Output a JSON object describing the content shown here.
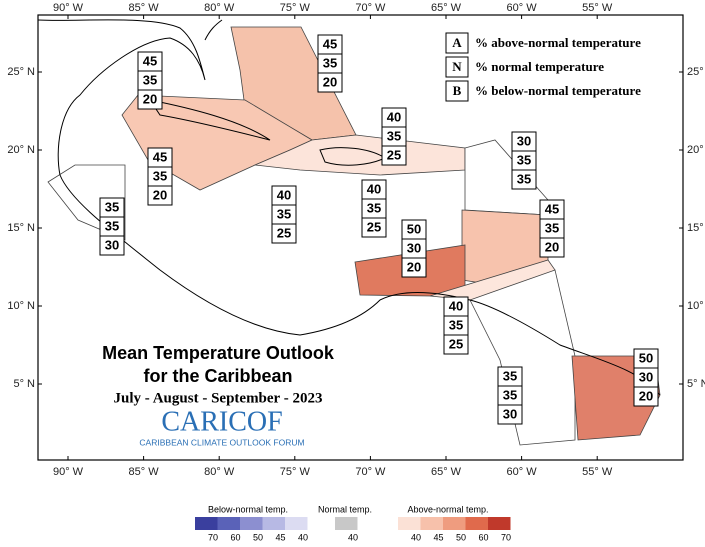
{
  "title_lines": [
    "Mean Temperature Outlook",
    "for the Caribbean",
    "July - August - September - 2023"
  ],
  "logo": {
    "name": "CARICOF",
    "subtitle": "CARIBBEAN CLIMATE OUTLOOK FORUM"
  },
  "key": [
    {
      "letter": "A",
      "text": "% above-normal temperature"
    },
    {
      "letter": "N",
      "text": "% normal temperature"
    },
    {
      "letter": "B",
      "text": "% below-normal temperature"
    }
  ],
  "longitude_labels": [
    "90° W",
    "85° W",
    "80° W",
    "75° W",
    "70° W",
    "65° W",
    "60° W",
    "55° W"
  ],
  "latitude_labels": [
    "25° N",
    "20° N",
    "15° N",
    "10° N",
    "5° N"
  ],
  "regions": [
    {
      "above": 45,
      "normal": 35,
      "below": 20
    },
    {
      "above": 45,
      "normal": 35,
      "below": 20
    },
    {
      "above": 40,
      "normal": 35,
      "below": 25
    },
    {
      "above": 30,
      "normal": 35,
      "below": 35
    },
    {
      "above": 45,
      "normal": 35,
      "below": 20
    },
    {
      "above": 40,
      "normal": 35,
      "below": 25
    },
    {
      "above": 40,
      "normal": 35,
      "below": 25
    },
    {
      "above": 45,
      "normal": 35,
      "below": 20
    },
    {
      "above": 35,
      "normal": 35,
      "below": 30
    },
    {
      "above": 50,
      "normal": 30,
      "below": 20
    },
    {
      "above": 40,
      "normal": 35,
      "below": 25
    },
    {
      "above": 35,
      "normal": 35,
      "below": 30
    },
    {
      "above": 50,
      "normal": 30,
      "below": 20
    }
  ],
  "colorbar": {
    "below": {
      "title": "Below-normal temp.",
      "labels": [
        70,
        60,
        50,
        45,
        40
      ]
    },
    "normal": {
      "title": "Normal temp.",
      "labels": [
        40
      ]
    },
    "above": {
      "title": "Above-normal temp.",
      "labels": [
        40,
        45,
        50,
        60,
        70
      ]
    }
  }
}
